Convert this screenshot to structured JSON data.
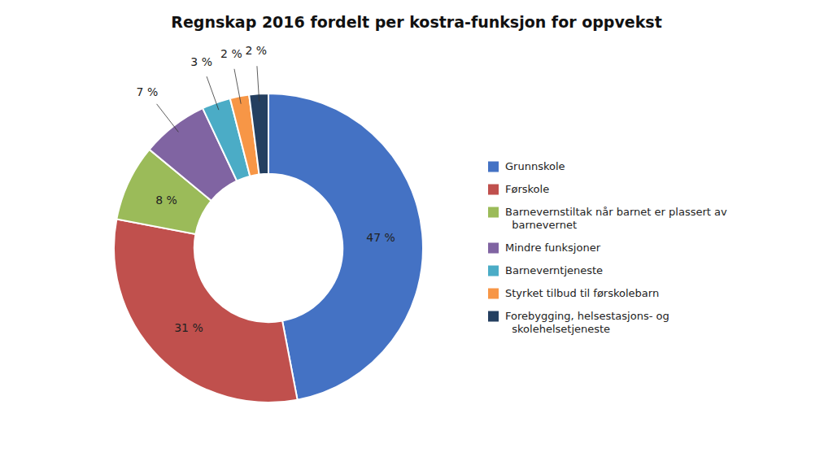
{
  "chart_data": {
    "type": "donut",
    "title": "Regnskap 2016 fordelt per kostra-funksjon for oppvekst",
    "categories": [
      "Grunnskole",
      "Førskole",
      "Barnevernstiltak når barnet er plassert av\n  barnevernet",
      "Mindre funksjoner",
      "Barneverntjeneste",
      "Styrket tilbud til førskolebarn",
      "Forebygging, helsestasjons- og\n  skolehelsetjeneste"
    ],
    "values": [
      47,
      31,
      8,
      7,
      3,
      2,
      2
    ],
    "value_labels": [
      "47 %",
      "31 %",
      "8 %",
      "7 %",
      "3 %",
      "2 %",
      "2 %"
    ],
    "colors": [
      "#4472C4",
      "#C0504D",
      "#9BBB59",
      "#8064A2",
      "#4BACC6",
      "#F79646",
      "#243F60"
    ],
    "data_labels": true,
    "legend": "right"
  }
}
